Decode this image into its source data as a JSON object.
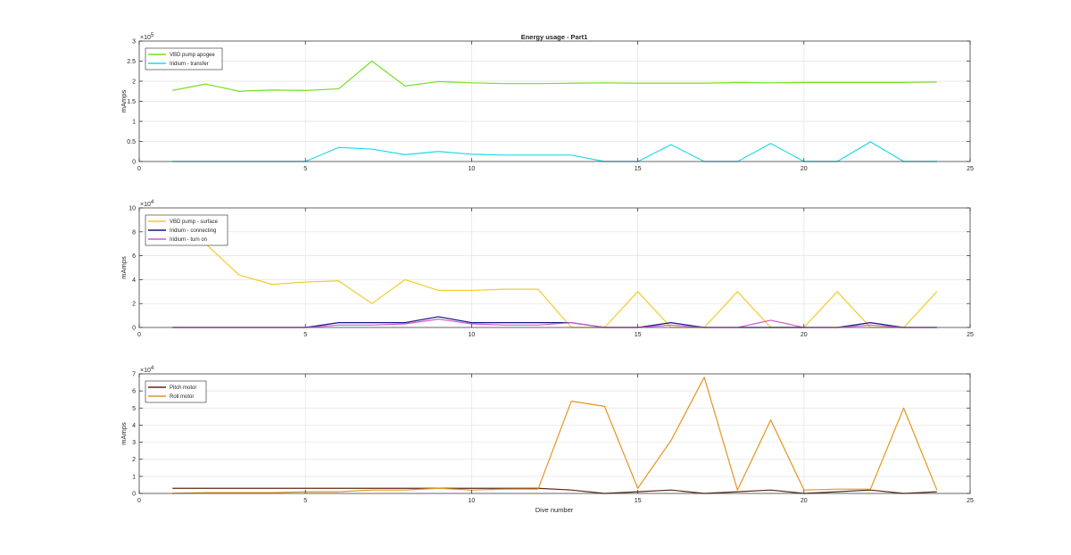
{
  "figure": {
    "title": "Energy usage - Part1",
    "xlabel": "Dive number",
    "ylabel": "mAmps"
  },
  "chart_data": [
    {
      "type": "line",
      "title": "Energy usage - Part1",
      "xlabel": "",
      "ylabel": "mAmps",
      "xlim": [
        0,
        25
      ],
      "ylim": [
        0,
        300000
      ],
      "xticks": [
        0,
        5,
        10,
        15,
        20,
        25
      ],
      "yticks": [
        0,
        50000,
        100000,
        150000,
        200000,
        250000,
        300000
      ],
      "ytick_labels": [
        "0",
        "0.5",
        "1",
        "1.5",
        "2",
        "2.5",
        "3"
      ],
      "y_multiplier": "×10",
      "y_exponent": "5",
      "grid": true,
      "legend": "top-left",
      "x": [
        1,
        2,
        3,
        4,
        5,
        6,
        7,
        8,
        9,
        10,
        11,
        12,
        13,
        14,
        15,
        16,
        17,
        18,
        19,
        20,
        21,
        22,
        23,
        24
      ],
      "series": [
        {
          "name": "VBD pump apogee",
          "color": "#77e01f",
          "values": [
            177000,
            193000,
            175000,
            178000,
            177000,
            181000,
            250000,
            188000,
            199000,
            196000,
            194000,
            194000,
            195000,
            196000,
            195000,
            195000,
            195000,
            197000,
            196000,
            197000,
            197000,
            197000,
            197000,
            198000
          ]
        },
        {
          "name": "Iridium - transfer",
          "color": "#21d8e8",
          "values": [
            0,
            0,
            0,
            0,
            0,
            35000,
            31000,
            17000,
            25000,
            18000,
            16000,
            16000,
            16000,
            0,
            0,
            42000,
            0,
            0,
            45000,
            0,
            0,
            49000,
            0,
            0
          ]
        }
      ]
    },
    {
      "type": "line",
      "title": "",
      "xlabel": "",
      "ylabel": "mAmps",
      "xlim": [
        0,
        25
      ],
      "ylim": [
        0,
        100000
      ],
      "xticks": [
        0,
        5,
        10,
        15,
        20,
        25
      ],
      "yticks": [
        0,
        20000,
        40000,
        60000,
        80000,
        100000
      ],
      "ytick_labels": [
        "0",
        "2",
        "4",
        "6",
        "8",
        "10"
      ],
      "y_multiplier": "×10",
      "y_exponent": "4",
      "grid": true,
      "legend": "top-left",
      "x": [
        1,
        2,
        3,
        4,
        5,
        6,
        7,
        8,
        9,
        10,
        11,
        12,
        13,
        14,
        15,
        16,
        17,
        18,
        19,
        20,
        21,
        22,
        23,
        24
      ],
      "series": [
        {
          "name": "VBD pump - surface",
          "color": "#f0cc2a",
          "values": [
            88000,
            70000,
            44000,
            36000,
            38000,
            39000,
            20000,
            40000,
            31000,
            31000,
            32000,
            32000,
            0,
            0,
            30000,
            0,
            0,
            30000,
            0,
            0,
            30000,
            0,
            0,
            30000
          ]
        },
        {
          "name": "Iridium - connecting",
          "color": "#14148c",
          "values": [
            0,
            0,
            0,
            0,
            0,
            4000,
            4000,
            4000,
            9000,
            4000,
            4000,
            4000,
            4000,
            0,
            0,
            4000,
            0,
            0,
            0,
            0,
            0,
            4000,
            0,
            0
          ]
        },
        {
          "name": "Iridium - turn on",
          "color": "#cc5ccc",
          "values": [
            0,
            0,
            0,
            0,
            0,
            2000,
            2000,
            3000,
            7000,
            3000,
            2000,
            2000,
            4000,
            0,
            0,
            2000,
            0,
            0,
            6000,
            0,
            0,
            2000,
            0,
            0
          ]
        }
      ]
    },
    {
      "type": "line",
      "title": "",
      "xlabel": "Dive number",
      "ylabel": "mAmps",
      "xlim": [
        0,
        25
      ],
      "ylim": [
        0,
        70000
      ],
      "xticks": [
        0,
        5,
        10,
        15,
        20,
        25
      ],
      "yticks": [
        0,
        10000,
        20000,
        30000,
        40000,
        50000,
        60000,
        70000
      ],
      "ytick_labels": [
        "0",
        "1",
        "2",
        "3",
        "4",
        "5",
        "6",
        "7"
      ],
      "y_multiplier": "×10",
      "y_exponent": "4",
      "grid": true,
      "legend": "top-left",
      "x": [
        1,
        2,
        3,
        4,
        5,
        6,
        7,
        8,
        9,
        10,
        11,
        12,
        13,
        14,
        15,
        16,
        17,
        18,
        19,
        20,
        21,
        22,
        23,
        24
      ],
      "series": [
        {
          "name": "Pitch motor",
          "color": "#5a2a14",
          "values": [
            3000,
            3000,
            3000,
            3000,
            3000,
            3000,
            3000,
            3000,
            3000,
            3000,
            3000,
            3000,
            2000,
            0,
            1000,
            2000,
            0,
            1000,
            2000,
            0,
            1000,
            2000,
            0,
            1000
          ]
        },
        {
          "name": "Roll motor",
          "color": "#e39620",
          "values": [
            0,
            500,
            500,
            500,
            1000,
            1000,
            2000,
            2000,
            3000,
            2000,
            2500,
            2500,
            54000,
            51000,
            3000,
            31000,
            68000,
            2000,
            43000,
            2000,
            2500,
            2500,
            50000,
            2000
          ]
        }
      ]
    }
  ]
}
